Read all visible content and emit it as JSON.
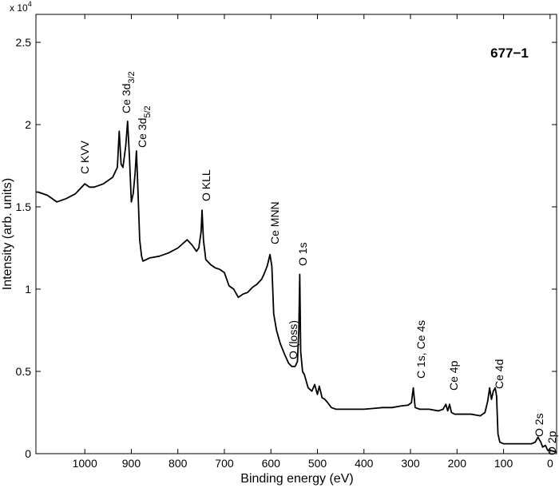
{
  "chart_data": {
    "type": "line",
    "title": "677−1",
    "xlabel": "Binding energy (eV)",
    "ylabel": "Intensity (arb. units)",
    "y_multiplier": {
      "base": "x 10",
      "exponent": "4"
    },
    "xlim": [
      1105,
      -14
    ],
    "ylim": [
      0,
      2.67
    ],
    "xticks": [
      1000,
      900,
      800,
      700,
      600,
      500,
      400,
      300,
      200,
      100,
      0
    ],
    "yticks": [
      0,
      0.5,
      1,
      1.5,
      2,
      2.5
    ],
    "color": "#000000",
    "annotations": [
      {
        "text": "C KVV"
      },
      {
        "text": "Ce 3d",
        "sub": "3/2"
      },
      {
        "text": "Ce 3d",
        "sub": "5/2"
      },
      {
        "text": "O KLL"
      },
      {
        "text": "Ce MNN"
      },
      {
        "text": "O 1s"
      },
      {
        "text": "O (loss)"
      },
      {
        "text": "C 1s, Ce 4s"
      },
      {
        "text": "Ce 4p"
      },
      {
        "text": "Ce 4d"
      },
      {
        "text": "O 2s"
      },
      {
        "text": "O 2p"
      }
    ],
    "x": [
      1105,
      1100,
      1080,
      1060,
      1040,
      1020,
      1000,
      990,
      980,
      960,
      940,
      930,
      926,
      922,
      918,
      912,
      908,
      904,
      900,
      896,
      892,
      889,
      886,
      882,
      878,
      875,
      860,
      840,
      820,
      800,
      780,
      770,
      760,
      755,
      750,
      748,
      745,
      740,
      730,
      720,
      710,
      700,
      690,
      680,
      670,
      660,
      650,
      640,
      630,
      620,
      615,
      608,
      602,
      598,
      594,
      588,
      580,
      570,
      562,
      555,
      548,
      543,
      540,
      538,
      536,
      532,
      528,
      520,
      512,
      506,
      500,
      496,
      490,
      484,
      478,
      470,
      460,
      440,
      420,
      400,
      380,
      360,
      340,
      320,
      305,
      298,
      294,
      290,
      280,
      260,
      240,
      230,
      224,
      220,
      216,
      212,
      205,
      190,
      170,
      150,
      140,
      134,
      130,
      126,
      122,
      118,
      115,
      112,
      108,
      100,
      80,
      60,
      40,
      32,
      26,
      20,
      16,
      10,
      5,
      0,
      -14
    ],
    "values": [
      1.59,
      1.59,
      1.57,
      1.53,
      1.55,
      1.58,
      1.64,
      1.62,
      1.62,
      1.64,
      1.68,
      1.74,
      1.96,
      1.76,
      1.74,
      1.87,
      2.02,
      1.8,
      1.53,
      1.58,
      1.7,
      1.84,
      1.62,
      1.3,
      1.2,
      1.17,
      1.19,
      1.2,
      1.22,
      1.25,
      1.3,
      1.27,
      1.23,
      1.25,
      1.35,
      1.48,
      1.3,
      1.18,
      1.15,
      1.13,
      1.12,
      1.1,
      1.02,
      1.0,
      0.95,
      0.97,
      0.98,
      1.01,
      1.03,
      1.06,
      1.09,
      1.14,
      1.21,
      1.14,
      0.85,
      0.75,
      0.67,
      0.6,
      0.55,
      0.53,
      0.53,
      0.56,
      0.75,
      1.09,
      0.62,
      0.5,
      0.48,
      0.4,
      0.38,
      0.42,
      0.36,
      0.41,
      0.34,
      0.33,
      0.31,
      0.28,
      0.27,
      0.27,
      0.27,
      0.27,
      0.275,
      0.28,
      0.28,
      0.29,
      0.295,
      0.31,
      0.4,
      0.28,
      0.27,
      0.27,
      0.26,
      0.27,
      0.3,
      0.26,
      0.3,
      0.25,
      0.24,
      0.24,
      0.24,
      0.23,
      0.25,
      0.32,
      0.4,
      0.33,
      0.38,
      0.4,
      0.35,
      0.12,
      0.07,
      0.06,
      0.06,
      0.06,
      0.06,
      0.07,
      0.1,
      0.07,
      0.04,
      0.05,
      0.02,
      0.02,
      0.01
    ]
  }
}
